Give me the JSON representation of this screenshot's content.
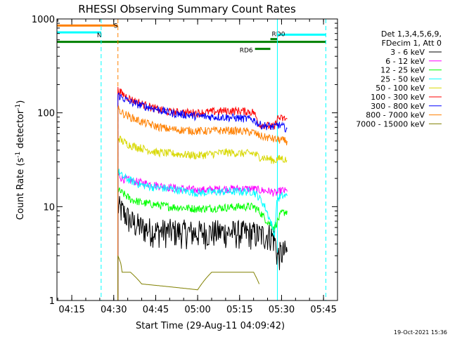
{
  "chart_data": {
    "type": "line",
    "title": "RHESSI Observing Summary Count Rates",
    "xlabel": "Start Time (29-Aug-11 04:09:42)",
    "ylabel": "Count Rate (s⁻¹ detector⁻¹)",
    "ylabel_main": "Count Rate (s",
    "ylabel_sup1": "-1",
    "ylabel_mid": " detector",
    "ylabel_sup2": "-1",
    "ylabel_end": ")",
    "y_scale": "log",
    "ylim": [
      1,
      1000
    ],
    "xlim": [
      "04:09:42",
      "05:50:00"
    ],
    "x_ticks": [
      "04:15",
      "04:30",
      "04:45",
      "05:00",
      "05:15",
      "05:30",
      "05:45"
    ],
    "y_ticks": [
      {
        "value": 1,
        "label": "1"
      },
      {
        "value": 10,
        "label": "10"
      },
      {
        "value": 100,
        "label": "100"
      },
      {
        "value": 1000,
        "label": "1000"
      }
    ],
    "legend_header": [
      "Det 1,3,4,5,6,9,",
      "FDecim 1, Att 0"
    ],
    "legend_placement": "right",
    "timestamp": "19-Oct-2021 15:36",
    "vlines": [
      {
        "x": "04:09:42",
        "color": "#00ffff",
        "style": "solid"
      },
      {
        "x": "04:25:30",
        "color": "#00ffff",
        "style": "dashed"
      },
      {
        "x": "04:31:30",
        "color": "#ff8000",
        "style": "dashed"
      },
      {
        "x": "05:28:30",
        "color": "#00ffff",
        "style": "solid"
      },
      {
        "x": "05:45:50",
        "color": "#00ffff",
        "style": "dashed"
      }
    ],
    "flag_bars": [
      {
        "label": "S",
        "color": "#ff8000",
        "x0": "04:09:42",
        "x1": "04:31:30",
        "y": 850
      },
      {
        "label": "N",
        "color": "#00ffff",
        "x0": "04:09:42",
        "x1": "04:25:30",
        "y": 720
      },
      {
        "label": "",
        "color": "#00ffff",
        "x0": "05:28:30",
        "x1": "05:45:50",
        "y": 680
      },
      {
        "label": "",
        "color": "#008000",
        "x0": "04:09:42",
        "x1": "05:45:50",
        "y": 570
      },
      {
        "label": "RD0",
        "color": "#008000",
        "x0": "05:26:00",
        "x1": "05:28:30",
        "y": 610
      },
      {
        "label": "RD6",
        "color": "#008000",
        "x0": "05:20:30",
        "x1": "05:26:00",
        "y": 480
      }
    ],
    "series": [
      {
        "name": "3 - 6 keV",
        "color": "#000000",
        "x": [
          "04:31:30",
          "04:33:00",
          "04:36:00",
          "04:40:00",
          "04:45:00",
          "04:50:00",
          "05:00:00",
          "05:10:00",
          "05:15:00",
          "05:20:00",
          "05:22:00",
          "05:24:00",
          "05:26:00",
          "05:27:30",
          "05:28:30",
          "05:30:00",
          "05:32:00"
        ],
        "values": [
          10,
          9,
          7,
          6,
          5.5,
          5.5,
          5.3,
          5.4,
          5.3,
          5.2,
          5.0,
          5.0,
          5.0,
          4.5,
          3.0,
          3.2,
          3.3
        ]
      },
      {
        "name": "6 - 12 keV",
        "color": "#ff00ff",
        "x": [
          "04:31:30",
          "04:33:00",
          "04:36:00",
          "04:40:00",
          "04:45:00",
          "04:50:00",
          "05:00:00",
          "05:10:00",
          "05:15:00",
          "05:20:00",
          "05:22:00",
          "05:24:00",
          "05:26:00",
          "05:27:30",
          "05:28:30",
          "05:30:00",
          "05:32:00"
        ],
        "values": [
          22,
          20,
          19,
          18,
          17,
          16,
          15,
          15.5,
          15.5,
          15.5,
          15.0,
          14.8,
          14.6,
          14.0,
          14.0,
          15.0,
          14.5
        ]
      },
      {
        "name": "12 - 25 keV",
        "color": "#00ff00",
        "x": [
          "04:31:30",
          "04:33:00",
          "04:36:00",
          "04:40:00",
          "04:45:00",
          "04:50:00",
          "05:00:00",
          "05:10:00",
          "05:15:00",
          "05:20:00",
          "05:22:00",
          "05:24:00",
          "05:26:00",
          "05:27:30",
          "05:28:30",
          "05:30:00",
          "05:32:00"
        ],
        "values": [
          15,
          14,
          12,
          11,
          10.5,
          10,
          9.5,
          9.8,
          10,
          10,
          9.0,
          7.5,
          6.5,
          6.0,
          7.0,
          8.5,
          9.0
        ]
      },
      {
        "name": "25 - 50 keV",
        "color": "#00ffff",
        "x": [
          "04:31:30",
          "04:33:00",
          "04:36:00",
          "04:40:00",
          "04:45:00",
          "04:50:00",
          "05:00:00",
          "05:10:00",
          "05:15:00",
          "05:20:00",
          "05:22:00",
          "05:24:00",
          "05:26:00",
          "05:27:30",
          "05:28:30",
          "05:30:00",
          "05:32:00"
        ],
        "values": [
          24,
          21,
          19,
          17,
          16,
          15.5,
          14,
          14.5,
          14.5,
          14.5,
          12.5,
          10,
          7,
          5,
          12,
          13,
          13
        ]
      },
      {
        "name": "50 - 100 keV",
        "color": "#d8d800",
        "x": [
          "04:31:30",
          "04:33:00",
          "04:36:00",
          "04:40:00",
          "04:45:00",
          "04:50:00",
          "05:00:00",
          "05:10:00",
          "05:15:00",
          "05:20:00",
          "05:22:00",
          "05:24:00",
          "05:26:00",
          "05:27:30",
          "05:28:30",
          "05:30:00",
          "05:32:00"
        ],
        "values": [
          55,
          50,
          45,
          42,
          38,
          37,
          35,
          38,
          37,
          37,
          34,
          33,
          32,
          31,
          32,
          33,
          31
        ]
      },
      {
        "name": "100 - 300 keV",
        "color": "#ff0000",
        "x": [
          "04:31:30",
          "04:33:00",
          "04:36:00",
          "04:40:00",
          "04:45:00",
          "04:50:00",
          "05:00:00",
          "05:10:00",
          "05:15:00",
          "05:20:00",
          "05:22:00",
          "05:24:00",
          "05:26:00",
          "05:27:30",
          "05:28:30",
          "05:30:00",
          "05:32:00"
        ],
        "values": [
          175,
          160,
          140,
          125,
          110,
          102,
          100,
          105,
          105,
          102,
          75,
          74,
          72,
          70,
          88,
          87,
          86
        ]
      },
      {
        "name": "300 - 800 keV",
        "color": "#0000ff",
        "x": [
          "04:31:30",
          "04:33:00",
          "04:36:00",
          "04:40:00",
          "04:45:00",
          "04:50:00",
          "05:00:00",
          "05:10:00",
          "05:15:00",
          "05:20:00",
          "05:22:00",
          "05:24:00",
          "05:26:00",
          "05:27:30",
          "05:28:30",
          "05:30:00",
          "05:32:00"
        ],
        "values": [
          155,
          145,
          130,
          120,
          110,
          100,
          92,
          90,
          88,
          85,
          75,
          73,
          72,
          70,
          75,
          72,
          68
        ]
      },
      {
        "name": "800 - 7000 keV",
        "color": "#ff8000",
        "x": [
          "04:31:30",
          "04:33:00",
          "04:36:00",
          "04:40:00",
          "04:45:00",
          "04:50:00",
          "05:00:00",
          "05:10:00",
          "05:15:00",
          "05:20:00",
          "05:22:00",
          "05:24:00",
          "05:26:00",
          "05:27:30",
          "05:28:30",
          "05:30:00",
          "05:32:00"
        ],
        "values": [
          110,
          100,
          90,
          80,
          72,
          67,
          64,
          65,
          64,
          62,
          57,
          55,
          54,
          52,
          52,
          51,
          50
        ]
      },
      {
        "name": "7000 - 15000 keV",
        "color": "#808000",
        "x": [
          "04:31:30",
          "04:32:30",
          "04:33:00",
          "04:36:00",
          "04:40:00",
          "05:00:00",
          "05:05:00",
          "05:10:00",
          "05:15:00",
          "05:20:00",
          "05:22:00"
        ],
        "values": [
          3,
          2.5,
          2,
          2,
          1.5,
          1.3,
          2,
          2,
          2,
          2,
          1.5
        ]
      }
    ]
  }
}
